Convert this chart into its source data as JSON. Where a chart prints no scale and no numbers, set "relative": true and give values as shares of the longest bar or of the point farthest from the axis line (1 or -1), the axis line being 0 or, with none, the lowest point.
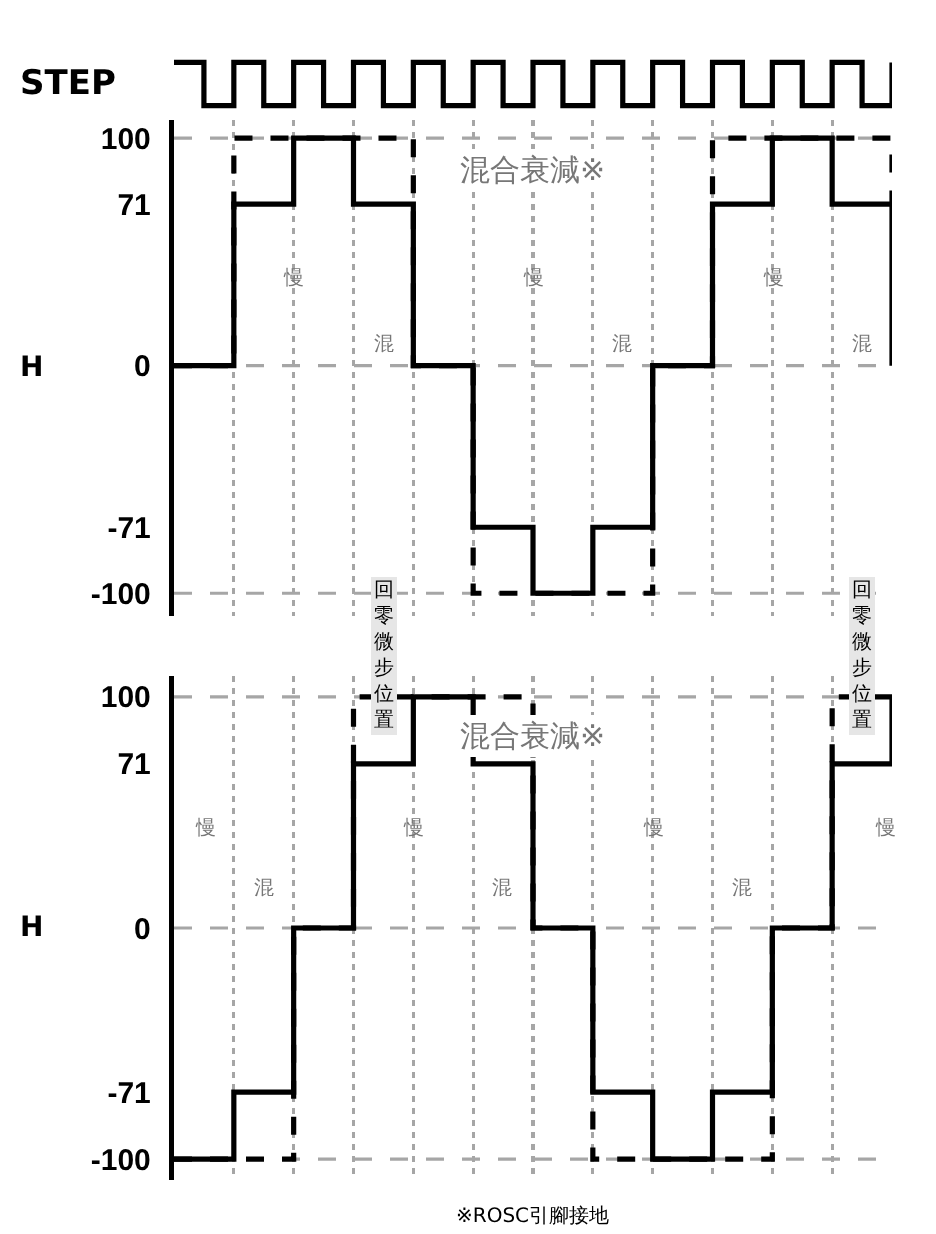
{
  "chart_data": [
    {
      "type": "step",
      "ylabel": "STEP",
      "relative": true,
      "tick_labels": false,
      "grid": false,
      "categories": [
        null,
        null,
        null,
        null,
        null,
        null,
        null,
        null,
        null,
        null,
        null,
        null,
        null,
        null,
        null,
        null,
        null,
        null,
        null,
        null,
        null,
        null,
        null,
        null,
        null
      ],
      "series": [
        {
          "color": "#000000",
          "line_style": "solid",
          "values": [
            1,
            0,
            1,
            0,
            1,
            0,
            1,
            0,
            1,
            0,
            1,
            0,
            1,
            0,
            1,
            0,
            1,
            0,
            1,
            0,
            1,
            0,
            1,
            0,
            1
          ]
        }
      ]
    },
    {
      "type": "step",
      "ylabel": "H",
      "ylim": [
        -110,
        108
      ],
      "yticks": [
        -100,
        -71,
        0,
        71,
        100
      ],
      "tick_labels": "y",
      "grid": "x",
      "categories": [
        null,
        null,
        null,
        null,
        null,
        null,
        null,
        null,
        null,
        null,
        null,
        null,
        null
      ],
      "series": [
        {
          "color": "#000000",
          "line_style": "dashed",
          "values": [
            0,
            100,
            100,
            100,
            0,
            -100,
            -100,
            -100,
            0,
            100,
            100,
            100,
            71
          ]
        },
        {
          "color": "#000000",
          "line_style": "solid",
          "values": [
            0,
            71,
            100,
            71,
            0,
            -71,
            -100,
            -71,
            0,
            71,
            100,
            71,
            0
          ]
        }
      ],
      "ref_lines": [
        {
          "axis": "y",
          "value": 100,
          "color": "#a6a6a6",
          "line_style": "dashed"
        },
        {
          "axis": "y",
          "value": 0,
          "color": "#a6a6a6",
          "line_style": "dashed"
        },
        {
          "axis": "y",
          "value": -100,
          "color": "#a6a6a6",
          "line_style": "dashed"
        }
      ],
      "annotations": [
        "混合衰減※",
        "慢",
        "慢",
        "慢",
        "混",
        "混",
        "混"
      ]
    },
    {
      "type": "step",
      "ylabel": "H",
      "ylim": [
        -109,
        109
      ],
      "yticks": [
        -100,
        -71,
        0,
        71,
        100
      ],
      "tick_labels": "y",
      "grid": "x",
      "categories": [
        null,
        null,
        null,
        null,
        null,
        null,
        null,
        null,
        null,
        null,
        null,
        null,
        null
      ],
      "series": [
        {
          "color": "#000000",
          "line_style": "dashed",
          "values": [
            -100,
            -100,
            0,
            100,
            100,
            100,
            0,
            -100,
            -100,
            -100,
            0,
            100,
            100
          ]
        },
        {
          "color": "#000000",
          "line_style": "solid",
          "values": [
            -100,
            -71,
            0,
            71,
            100,
            71,
            0,
            -71,
            -100,
            -71,
            0,
            71,
            100
          ]
        }
      ],
      "ref_lines": [
        {
          "axis": "y",
          "value": 100,
          "color": "#a6a6a6",
          "line_style": "dashed"
        },
        {
          "axis": "y",
          "value": 0,
          "color": "#a6a6a6",
          "line_style": "dashed"
        },
        {
          "axis": "y",
          "value": -100,
          "color": "#a6a6a6",
          "line_style": "dashed"
        }
      ],
      "annotations": [
        "混合衰減※",
        "慢",
        "慢",
        "慢",
        "慢",
        "混",
        "混",
        "混",
        "回零微步位置",
        "回零微步位置",
        "※ROSC引腳接地"
      ]
    }
  ]
}
